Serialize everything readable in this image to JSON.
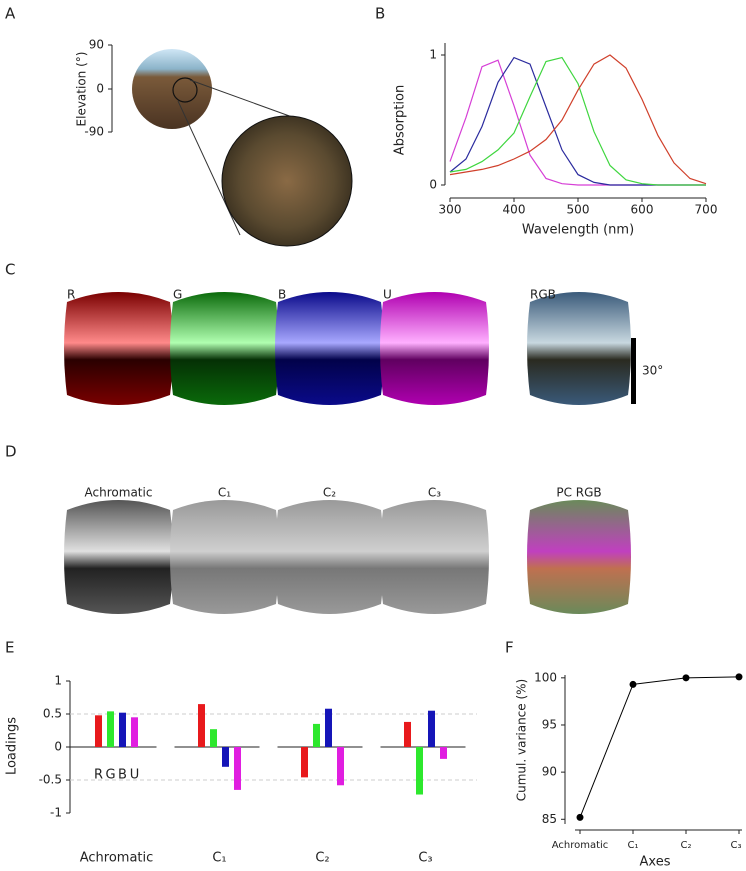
{
  "panels": {
    "labels": [
      "A",
      "B",
      "C",
      "D",
      "E",
      "F"
    ]
  },
  "panel_a": {
    "axis_label": "Elevation (°)",
    "ticks": [
      "90",
      "0",
      "-90"
    ]
  },
  "panel_c": {
    "images": [
      "R",
      "G",
      "B",
      "U",
      "RGB"
    ],
    "scale_bar": "30°"
  },
  "panel_d": {
    "images": [
      "Achromatic",
      "C₁",
      "C₂",
      "C₃",
      "PC RGB"
    ]
  },
  "chart_data": [
    {
      "type": "line",
      "x": [
        300,
        325,
        350,
        375,
        400,
        425,
        450,
        475,
        500,
        525,
        550,
        575,
        600,
        625,
        650,
        675,
        700
      ],
      "xlim": [
        300,
        700
      ],
      "xticks": [
        300,
        400,
        500,
        600,
        700
      ],
      "ylim": [
        0,
        1
      ],
      "yticks": [
        0,
        1
      ],
      "xlabel": "Wavelength (nm)",
      "ylabel": "Absorption",
      "series": [
        {
          "color": "#d63fd6",
          "values": [
            0.18,
            0.52,
            0.91,
            0.96,
            0.61,
            0.23,
            0.05,
            0.01,
            0,
            0,
            0,
            0,
            0,
            0,
            0,
            0,
            0
          ]
        },
        {
          "color": "#2b2b9e",
          "values": [
            0.1,
            0.2,
            0.45,
            0.79,
            0.98,
            0.93,
            0.6,
            0.27,
            0.08,
            0.02,
            0,
            0,
            0,
            0,
            0,
            0,
            0
          ]
        },
        {
          "color": "#3fd63f",
          "values": [
            0.1,
            0.12,
            0.18,
            0.27,
            0.4,
            0.68,
            0.95,
            0.98,
            0.78,
            0.41,
            0.15,
            0.04,
            0.01,
            0,
            0,
            0,
            0
          ]
        },
        {
          "color": "#d0402b",
          "values": [
            0.08,
            0.1,
            0.12,
            0.15,
            0.2,
            0.26,
            0.35,
            0.5,
            0.73,
            0.93,
            1.0,
            0.9,
            0.66,
            0.38,
            0.17,
            0.05,
            0.01
          ]
        }
      ]
    },
    {
      "type": "bar",
      "categories": [
        "Achromatic",
        "C₁",
        "C₂",
        "C₃"
      ],
      "ylabel": "Loadings",
      "ylim": [
        -1,
        1
      ],
      "yticks": [
        -1,
        -0.5,
        0,
        0.5,
        1
      ],
      "grid": true,
      "series": [
        {
          "name": "R",
          "color": "#e8191c",
          "values": [
            0.48,
            0.65,
            -0.46,
            0.38
          ]
        },
        {
          "name": "G",
          "color": "#2de82d",
          "values": [
            0.54,
            0.27,
            0.35,
            -0.72
          ]
        },
        {
          "name": "B",
          "color": "#1515b8",
          "values": [
            0.52,
            -0.3,
            0.58,
            0.55
          ]
        },
        {
          "name": "U",
          "color": "#e01ee0",
          "values": [
            0.45,
            -0.65,
            -0.58,
            -0.18
          ]
        }
      ]
    },
    {
      "type": "line",
      "categories": [
        "Achromatic",
        "C₁",
        "C₂",
        "C₃"
      ],
      "values": [
        85.2,
        99.3,
        100,
        100.1
      ],
      "xlabel": "Axes",
      "ylabel": "Cumul. variance (%)",
      "ylim": [
        84.5,
        100.3
      ],
      "yticks": [
        85,
        90,
        95,
        100
      ],
      "color": "#000000"
    }
  ]
}
